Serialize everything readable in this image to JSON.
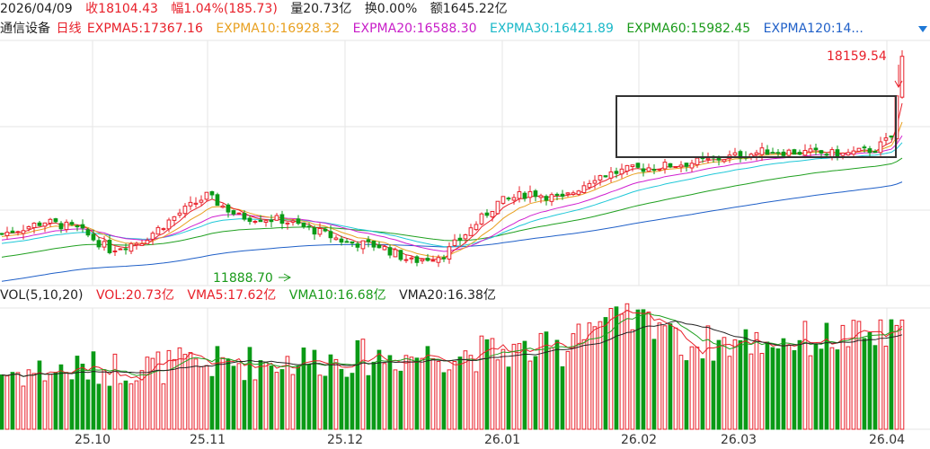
{
  "header": {
    "date": "2026/04/09",
    "close": "收18104.43",
    "change": "幅1.04%(185.73)",
    "volume": "量20.73亿",
    "turnover": "换0.00%",
    "amount": "额1645.22亿"
  },
  "ma_header": {
    "name": "通信设备",
    "period": "日线",
    "ma5": "EXPMA5:17367.16",
    "ma10": "EXPMA10:16928.32",
    "ma20": "EXPMA20:16588.30",
    "ma30": "EXPMA30:16421.89",
    "ma60": "EXPMA60:15982.45",
    "ma120": "EXPMA120:14..."
  },
  "vol_header": {
    "name": "VOL(5,10,20)",
    "vol": "VOL:20.73亿",
    "vma5": "VMA5:17.62亿",
    "vma10": "VMA10:16.68亿",
    "vma20": "VMA20:16.38亿"
  },
  "colors": {
    "up": "#e8202a",
    "down": "#0a9a16",
    "text": "#222222",
    "ma5": "#e8202a",
    "ma10": "#e8a020",
    "ma20": "#d020d0",
    "ma30": "#20c8d8",
    "ma60": "#20a020",
    "ma120": "#2060c8",
    "grid": "#e6e6e6",
    "box": "#333333"
  },
  "chart_data": {
    "type": "candlestick",
    "price_range": [
      11500,
      18600
    ],
    "volume_max": 29,
    "x_ticks": [
      "25.10",
      "25.11",
      "25.12",
      "26.01",
      "26.02",
      "26.03",
      "26.04"
    ],
    "annotations": {
      "high_label": "18159.54",
      "low_label": "11888.70"
    }
  }
}
